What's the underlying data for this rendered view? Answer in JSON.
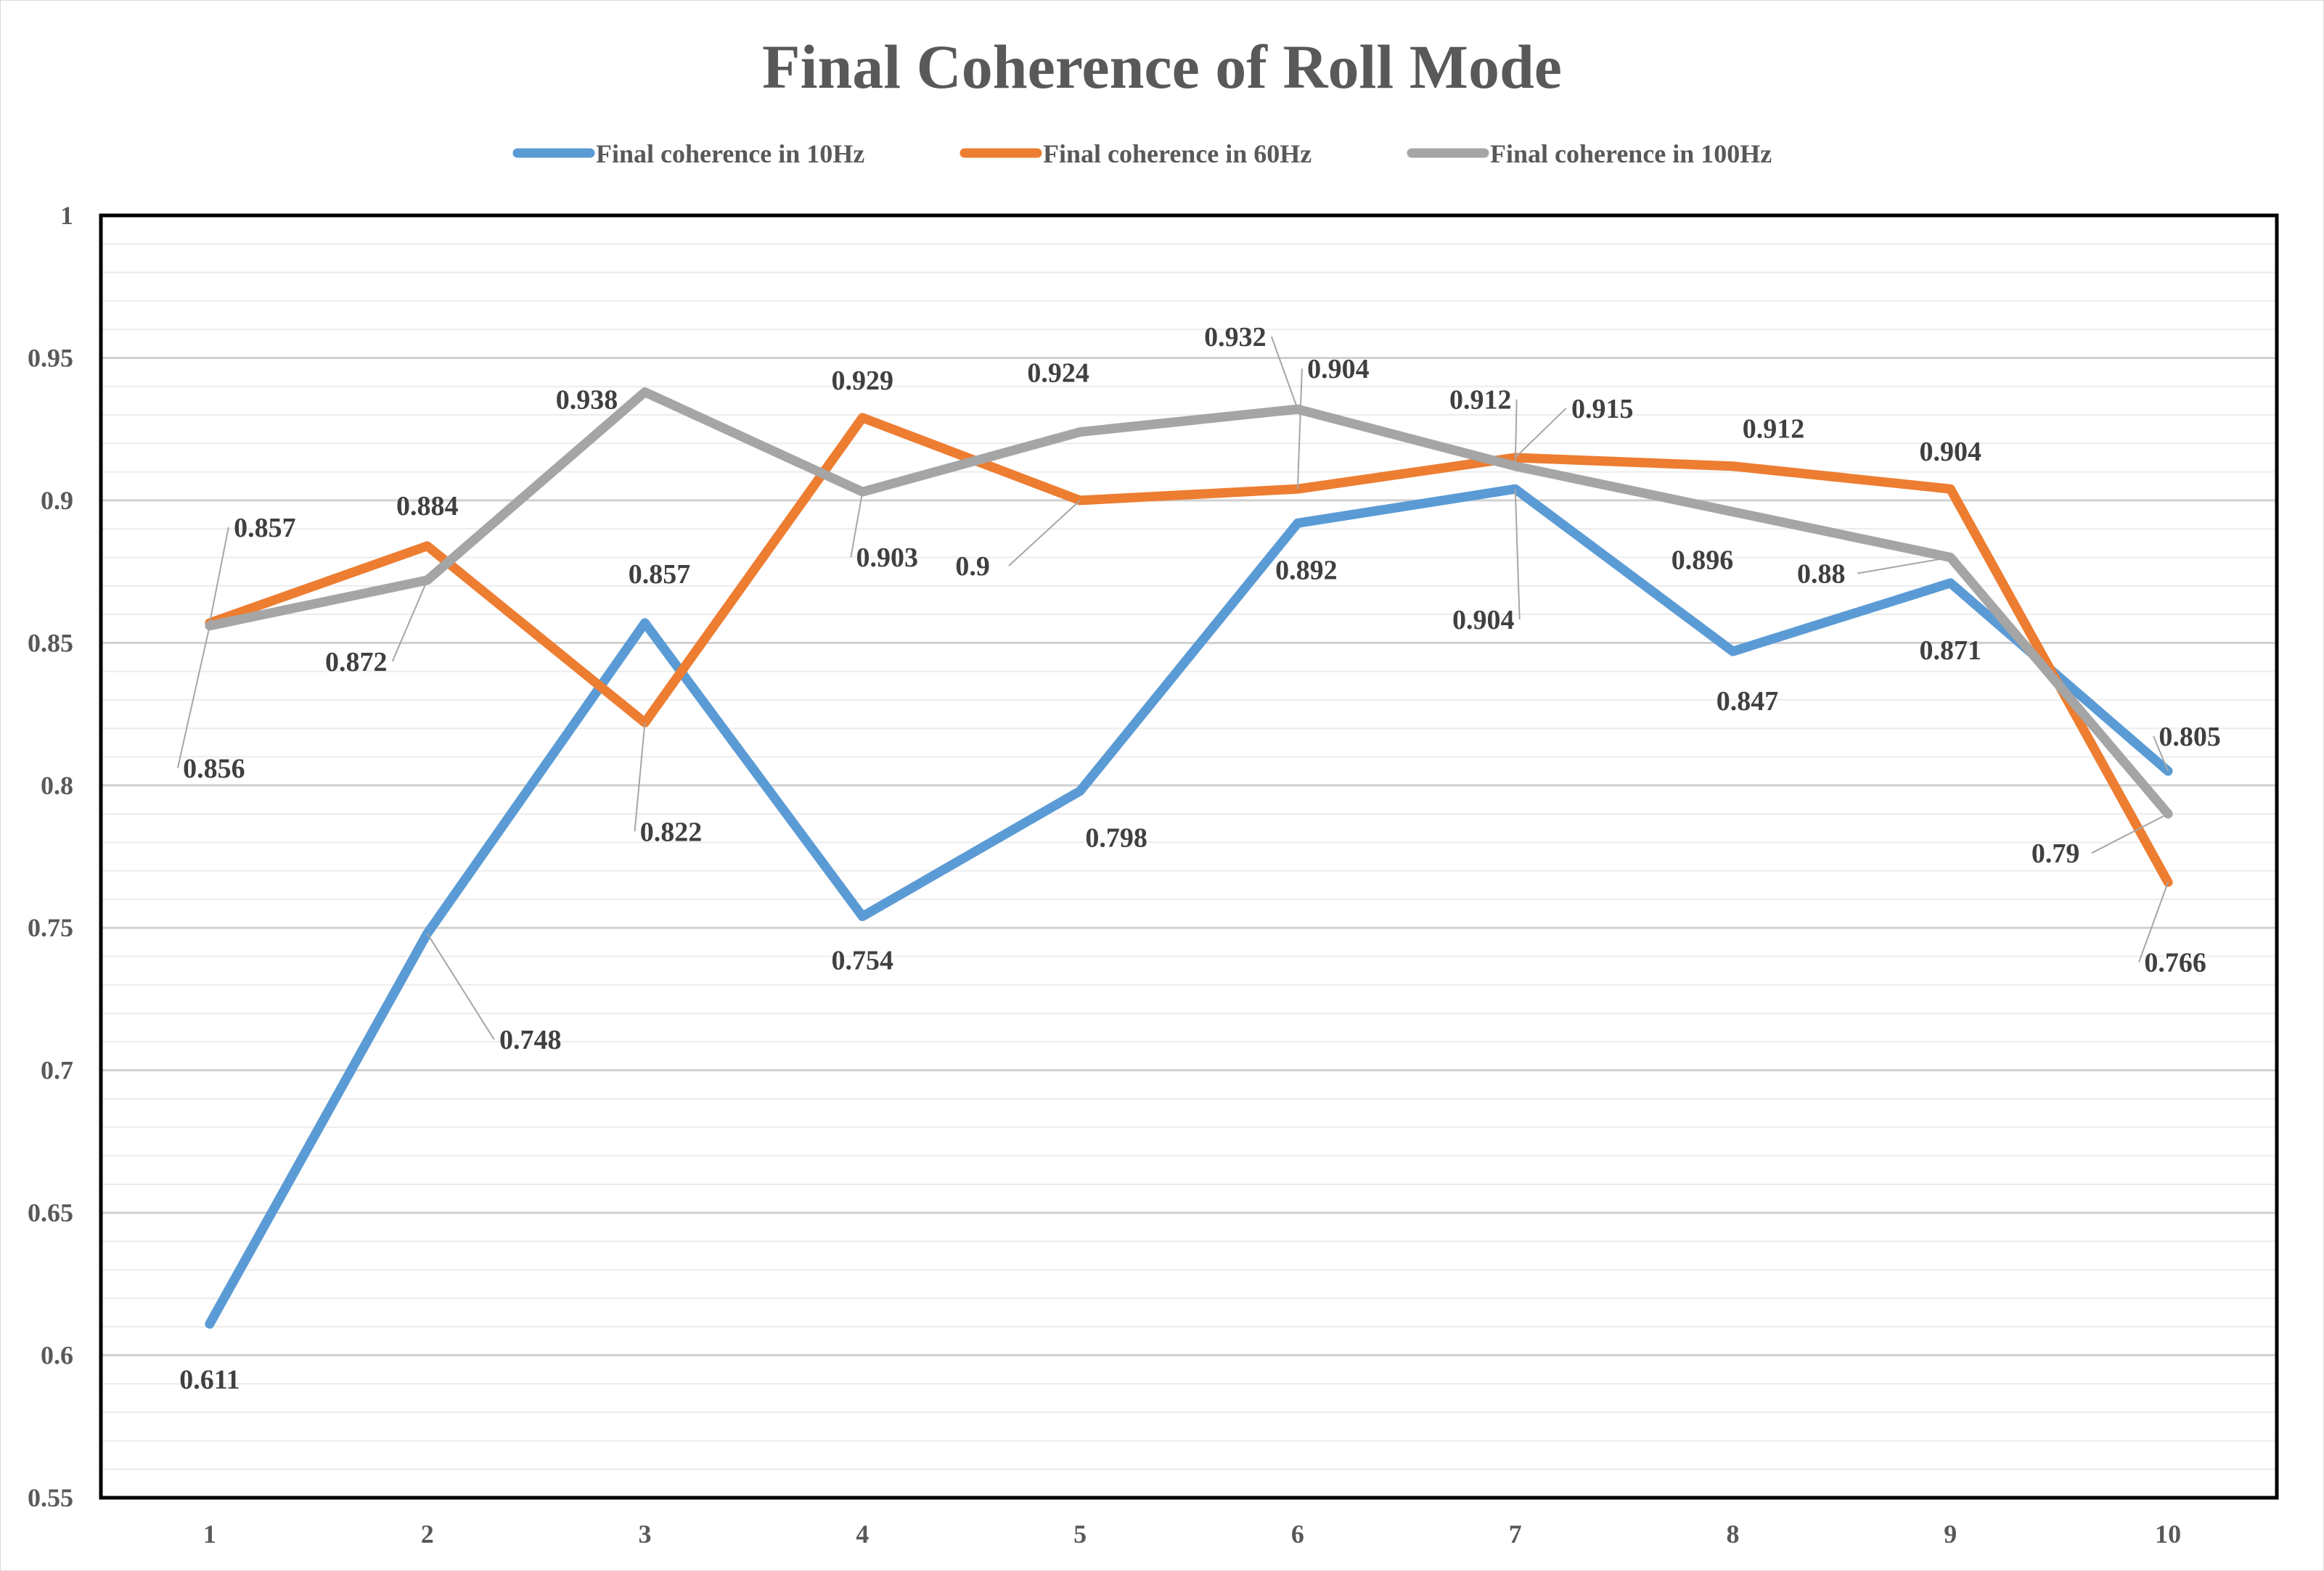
{
  "chart_data": {
    "type": "line",
    "title": "Final Coherence of Roll Mode",
    "xlabel": "",
    "ylabel": "",
    "categories": [
      "1",
      "2",
      "3",
      "4",
      "5",
      "6",
      "7",
      "8",
      "9",
      "10"
    ],
    "ylim": [
      0.55,
      1
    ],
    "yticks": [
      "0.55",
      "0.6",
      "0.65",
      "0.7",
      "0.75",
      "0.8",
      "0.85",
      "0.9",
      "0.95",
      "1"
    ],
    "grid": true,
    "legend_position": "top",
    "series": [
      {
        "name": "Final coherence in 10Hz",
        "color": "#5b9bd5",
        "values": [
          0.611,
          0.748,
          0.857,
          0.754,
          0.798,
          0.892,
          0.904,
          0.847,
          0.871,
          0.805
        ],
        "labels": [
          "0.611",
          "0.748",
          "0.857",
          "0.754",
          "0.798",
          "0.892",
          "0.904",
          "0.847",
          "0.871",
          "0.805"
        ]
      },
      {
        "name": "Final coherence in 60Hz",
        "color": "#ed7d31",
        "values": [
          0.857,
          0.884,
          0.822,
          0.929,
          0.9,
          0.904,
          0.915,
          0.912,
          0.904,
          0.766
        ],
        "labels": [
          "0.857",
          "0.884",
          "0.822",
          "0.929",
          "0.9",
          "0.904",
          "0.915",
          "0.912",
          "0.904",
          "0.766"
        ]
      },
      {
        "name": "Final coherence in 100Hz",
        "color": "#a5a5a5",
        "values": [
          0.856,
          0.872,
          0.938,
          0.903,
          0.924,
          0.932,
          0.912,
          0.896,
          0.88,
          0.79
        ],
        "labels": [
          "0.856",
          "0.872",
          "0.938",
          "0.903",
          "0.924",
          "0.932",
          "0.912",
          "0.896",
          "0.88",
          "0.79"
        ]
      }
    ]
  }
}
